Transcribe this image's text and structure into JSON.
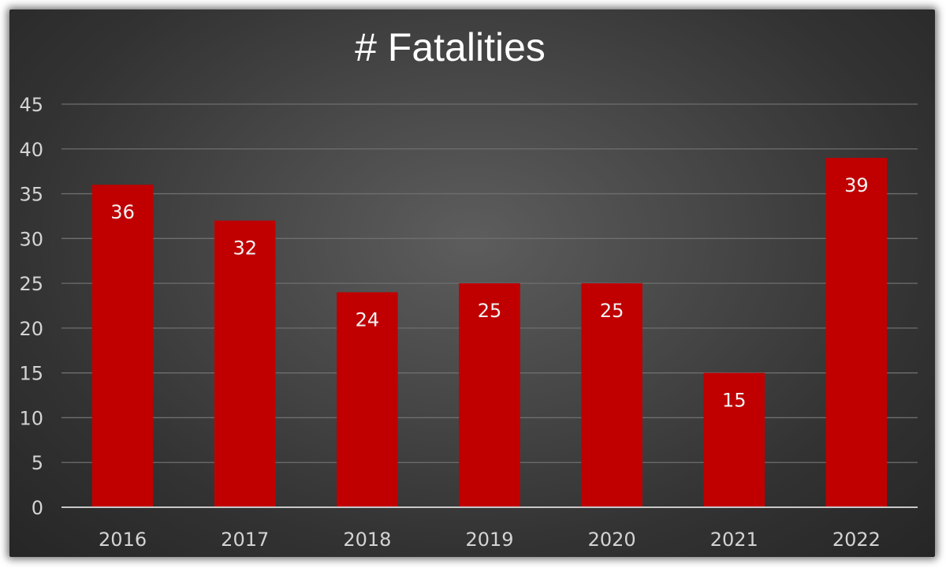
{
  "chart_data": {
    "type": "bar",
    "title": "# Fatalities",
    "categories": [
      "2016",
      "2017",
      "2018",
      "2019",
      "2020",
      "2021",
      "2022"
    ],
    "values": [
      36,
      32,
      24,
      25,
      25,
      15,
      39
    ],
    "ylim": [
      0,
      45
    ],
    "yticks": [
      0,
      5,
      10,
      15,
      20,
      25,
      30,
      35,
      40,
      45
    ],
    "xlabel": "",
    "ylabel": "",
    "grid": true,
    "legend": "none",
    "bar_color": "#c00000",
    "data_labels": true
  }
}
